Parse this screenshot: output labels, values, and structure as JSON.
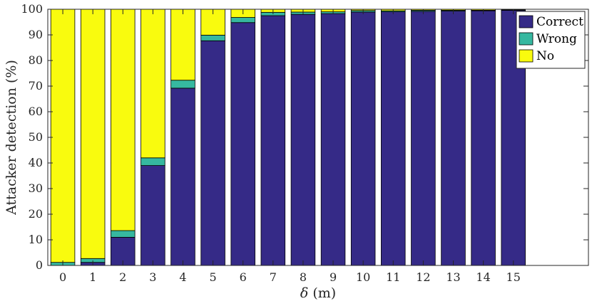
{
  "chart_data": {
    "type": "bar",
    "stacked": true,
    "categories": [
      "0",
      "1",
      "2",
      "3",
      "4",
      "5",
      "6",
      "7",
      "8",
      "9",
      "10",
      "11",
      "12",
      "13",
      "14",
      "15"
    ],
    "series": [
      {
        "name": "Correct",
        "color": "#352a87",
        "values": [
          0,
          1.2,
          11,
          39,
          69.2,
          87.7,
          94.8,
          97.5,
          98,
          98.3,
          98.9,
          99,
          99.2,
          99.3,
          99.4,
          99.6
        ]
      },
      {
        "name": "Wrong",
        "color": "#36b8a0",
        "values": [
          1.2,
          1.5,
          2.6,
          3,
          3.1,
          2.2,
          2,
          1.3,
          0.9,
          0.7,
          0.6,
          0.4,
          0.4,
          0.3,
          0.2,
          0.2
        ]
      },
      {
        "name": "No",
        "color": "#f9fb0e",
        "values": [
          98.8,
          97.3,
          86.4,
          58,
          27.7,
          10.1,
          3.2,
          1.2,
          1.1,
          1,
          0.5,
          0.6,
          0.4,
          0.4,
          0.4,
          0.2
        ]
      }
    ],
    "xlabel": "δ (m)",
    "ylabel": "Attacker detection (%)",
    "ylim": [
      0,
      100
    ],
    "yticks": [
      0,
      10,
      20,
      30,
      40,
      50,
      60,
      70,
      80,
      90,
      100
    ],
    "xlim": [
      -0.5,
      17.5
    ],
    "grid": false,
    "legend": "top-right"
  }
}
